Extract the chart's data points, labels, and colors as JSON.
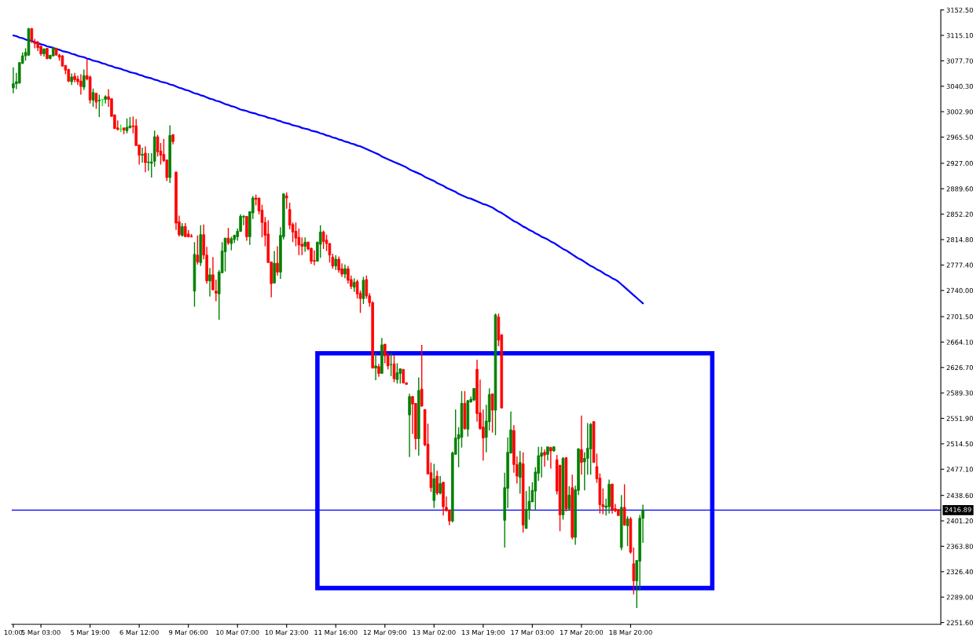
{
  "chart_data": {
    "type": "candlestick",
    "categories": [
      "10:00",
      null,
      null,
      null,
      null,
      null,
      null,
      null,
      null,
      "5 Mar 03:00",
      null,
      null,
      null,
      null,
      null,
      null,
      null,
      null,
      null,
      null,
      null,
      null,
      null,
      null,
      null,
      "5 Mar 19:00",
      null,
      null,
      null,
      null,
      null,
      null,
      null,
      null,
      null,
      null,
      null,
      null,
      null,
      null,
      null,
      "6 Mar 12:00",
      null,
      null,
      null,
      null,
      null,
      null,
      null,
      null,
      null,
      null,
      null,
      null,
      null,
      null,
      null,
      "9 Mar 06:00",
      null,
      null,
      null,
      null,
      null,
      null,
      null,
      null,
      null,
      null,
      null,
      null,
      null,
      null,
      null,
      "10 Mar 07:00",
      null,
      null,
      null,
      null,
      null,
      null,
      null,
      null,
      null,
      null,
      null,
      null,
      null,
      null,
      null,
      "10 Mar 23:00",
      null,
      null,
      null,
      null,
      null,
      null,
      null,
      null,
      null,
      null,
      null,
      null,
      null,
      null,
      null,
      "11 Mar 16:00",
      null,
      null,
      null,
      null,
      null,
      null,
      null,
      null,
      null,
      null,
      null,
      null,
      null,
      null,
      null,
      "12 Mar 09:00",
      null,
      null,
      null,
      null,
      null,
      null,
      null,
      null,
      null,
      null,
      null,
      null,
      null,
      null,
      null,
      "13 Mar 02:00",
      null,
      null,
      null,
      null,
      null,
      null,
      null,
      null,
      null,
      null,
      null,
      null,
      null,
      null,
      null,
      "13 Mar 19:00",
      null,
      null,
      null,
      null,
      null,
      null,
      null,
      null,
      null,
      null,
      null,
      null,
      null,
      null,
      null,
      "17 Mar 03:00",
      null,
      null,
      null,
      null,
      null,
      null,
      null,
      null,
      null,
      null,
      null,
      null,
      null,
      null,
      null,
      "17 Mar 20:00",
      null,
      null,
      null,
      null,
      null,
      null,
      null,
      null,
      null,
      null,
      null,
      null,
      null,
      null,
      null,
      "18 Mar 20:00",
      null,
      null,
      null,
      null
    ],
    "ohlc": [
      [
        3038,
        3068,
        3030,
        3044
      ],
      [
        3044,
        3060,
        3036,
        3047
      ],
      [
        3045,
        3076,
        3044,
        3075
      ],
      [
        3074,
        3090,
        3073,
        3085
      ],
      [
        3085,
        3096,
        3078,
        3090
      ],
      [
        3086,
        3126,
        3085,
        3125
      ],
      [
        3125,
        3126,
        3104,
        3108
      ],
      [
        3106,
        3110,
        3096,
        3103
      ],
      [
        3104,
        3107,
        3092,
        3097
      ],
      [
        3099,
        3100,
        3085,
        3088
      ],
      [
        3088,
        3096,
        3084,
        3095
      ],
      [
        3096,
        3096,
        3080,
        3081
      ],
      [
        3081,
        3086,
        3080,
        3086
      ],
      [
        3085,
        3098,
        3084,
        3097
      ],
      [
        3096,
        3097,
        3086,
        3086
      ],
      [
        3086,
        3088,
        3078,
        3083
      ],
      [
        3085,
        3086,
        3069,
        3070
      ],
      [
        3071,
        3071,
        3058,
        3064
      ],
      [
        3065,
        3066,
        3046,
        3048
      ],
      [
        3047,
        3059,
        3042,
        3054
      ],
      [
        3055,
        3060,
        3046,
        3050
      ],
      [
        3051,
        3056,
        3042,
        3047
      ],
      [
        3048,
        3058,
        3028,
        3040
      ],
      [
        3039,
        3065,
        3035,
        3056
      ],
      [
        3056,
        3080,
        3049,
        3051
      ],
      [
        3054,
        3056,
        3015,
        3020
      ],
      [
        3020,
        3037,
        3010,
        3031
      ],
      [
        3030,
        3030,
        3007,
        3017
      ],
      [
        3019,
        3028,
        2995,
        3020
      ],
      [
        3021,
        3022,
        3011,
        3021
      ],
      [
        3021,
        3027,
        3015,
        3025
      ],
      [
        3025,
        3036,
        3010,
        3021
      ],
      [
        3022,
        3022,
        2996,
        2996
      ],
      [
        2998,
        2999,
        2978,
        2978
      ],
      [
        2979,
        2990,
        2975,
        2977
      ],
      [
        2977,
        2984,
        2973,
        2977
      ],
      [
        2979,
        2979,
        2970,
        2976
      ],
      [
        2975,
        2993,
        2971,
        2980
      ],
      [
        2979,
        2995,
        2979,
        2982
      ],
      [
        2982,
        2996,
        2971,
        2981
      ],
      [
        2982,
        2992,
        2953,
        2953
      ],
      [
        2954,
        2954,
        2925,
        2939
      ],
      [
        2939,
        2950,
        2928,
        2940
      ],
      [
        2942,
        2952,
        2914,
        2928
      ],
      [
        2928,
        2942,
        2916,
        2929
      ],
      [
        2927,
        2942,
        2906,
        2929
      ],
      [
        2930,
        2975,
        2922,
        2966
      ],
      [
        2966,
        2969,
        2937,
        2944
      ],
      [
        2945,
        2957,
        2925,
        2939
      ],
      [
        2940,
        2963,
        2929,
        2931
      ],
      [
        2932,
        2932,
        2901,
        2906
      ],
      [
        2906,
        2983,
        2898,
        2968
      ],
      [
        2969,
        2970,
        2955,
        2959
      ],
      [
        2914,
        2915,
        2829,
        2839
      ],
      [
        2841,
        2850,
        2819,
        2822
      ],
      [
        2821,
        2839,
        2819,
        2834
      ],
      [
        2834,
        2839,
        2819,
        2819
      ],
      [
        2823,
        2829,
        2818,
        2819
      ],
      [
        2820,
        2823,
        2818,
        2819
      ],
      [
        2739,
        2811,
        2716,
        2793
      ],
      [
        2792,
        2821,
        2778,
        2782
      ],
      [
        2781,
        2836,
        2776,
        2822
      ],
      [
        2822,
        2837,
        2786,
        2792
      ],
      [
        2792,
        2804,
        2750,
        2754
      ],
      [
        2754,
        2773,
        2731,
        2763
      ],
      [
        2763,
        2789,
        2740,
        2741
      ],
      [
        2739,
        2756,
        2724,
        2736
      ],
      [
        2735,
        2770,
        2697,
        2767
      ],
      [
        2766,
        2811,
        2766,
        2798
      ],
      [
        2797,
        2817,
        2768,
        2817
      ],
      [
        2817,
        2832,
        2807,
        2810
      ],
      [
        2809,
        2819,
        2799,
        2816
      ],
      [
        2815,
        2822,
        2810,
        2821
      ],
      [
        2819,
        2831,
        2813,
        2827
      ],
      [
        2827,
        2852,
        2826,
        2849
      ],
      [
        2848,
        2851,
        2836,
        2849
      ],
      [
        2849,
        2849,
        2813,
        2819
      ],
      [
        2819,
        2856,
        2807,
        2856
      ],
      [
        2854,
        2879,
        2845,
        2876
      ],
      [
        2876,
        2881,
        2865,
        2874
      ],
      [
        2876,
        2876,
        2852,
        2857
      ],
      [
        2858,
        2866,
        2818,
        2840
      ],
      [
        2840,
        2848,
        2805,
        2821
      ],
      [
        2823,
        2843,
        2781,
        2781
      ],
      [
        2782,
        2782,
        2730,
        2750
      ],
      [
        2751,
        2798,
        2750,
        2780
      ],
      [
        2780,
        2805,
        2762,
        2767
      ],
      [
        2767,
        2833,
        2757,
        2821
      ],
      [
        2819,
        2882,
        2815,
        2882
      ],
      [
        2879,
        2884,
        2860,
        2876
      ],
      [
        2859,
        2869,
        2830,
        2836
      ],
      [
        2837,
        2840,
        2811,
        2826
      ],
      [
        2827,
        2840,
        2805,
        2817
      ],
      [
        2818,
        2831,
        2792,
        2807
      ],
      [
        2808,
        2818,
        2792,
        2805
      ],
      [
        2805,
        2818,
        2797,
        2811
      ],
      [
        2811,
        2812,
        2799,
        2801
      ],
      [
        2802,
        2803,
        2779,
        2783
      ],
      [
        2784,
        2799,
        2777,
        2783
      ],
      [
        2783,
        2812,
        2783,
        2811
      ],
      [
        2808,
        2836,
        2788,
        2826
      ],
      [
        2826,
        2828,
        2801,
        2812
      ],
      [
        2814,
        2822,
        2798,
        2809
      ],
      [
        2809,
        2810,
        2781,
        2792
      ],
      [
        2789,
        2794,
        2772,
        2776
      ],
      [
        2776,
        2792,
        2770,
        2786
      ],
      [
        2786,
        2790,
        2766,
        2770
      ],
      [
        2772,
        2780,
        2760,
        2764
      ],
      [
        2764,
        2778,
        2758,
        2772
      ],
      [
        2772,
        2776,
        2750,
        2755
      ],
      [
        2756,
        2762,
        2742,
        2746
      ],
      [
        2745,
        2758,
        2738,
        2752
      ],
      [
        2753,
        2756,
        2728,
        2735
      ],
      [
        2736,
        2740,
        2707,
        2728
      ],
      [
        2728,
        2760,
        2720,
        2755
      ],
      [
        2756,
        2762,
        2728,
        2732
      ],
      [
        2732,
        2736,
        2716,
        2722
      ],
      [
        2722,
        2724,
        2625,
        2626
      ],
      [
        2626,
        2648,
        2608,
        2629
      ],
      [
        2628,
        2632,
        2613,
        2618
      ],
      [
        2618,
        2670,
        2618,
        2660
      ],
      [
        2661,
        2661,
        2633,
        2644
      ],
      [
        2645,
        2648,
        2624,
        2629
      ],
      [
        2631,
        2648,
        2614,
        2631
      ],
      [
        2632,
        2645,
        2605,
        2610
      ],
      [
        2609,
        2633,
        2603,
        2619
      ],
      [
        2618,
        2625,
        2603,
        2625
      ],
      [
        2624,
        2624,
        2603,
        2604
      ],
      [
        2604,
        2605,
        2601,
        2602
      ],
      [
        2557,
        2588,
        2495,
        2584
      ],
      [
        2584,
        2585,
        2529,
        2573
      ],
      [
        2574,
        2574,
        2506,
        2522
      ],
      [
        2522,
        2612,
        2497,
        2593
      ],
      [
        2595,
        2660,
        2569,
        2570
      ],
      [
        2565,
        2565,
        2511,
        2513
      ],
      [
        2514,
        2544,
        2470,
        2470
      ],
      [
        2472,
        2487,
        2444,
        2450
      ],
      [
        2431,
        2485,
        2420,
        2463
      ],
      [
        2467,
        2475,
        2439,
        2442
      ],
      [
        2442,
        2467,
        2440,
        2456
      ],
      [
        2458,
        2458,
        2409,
        2422
      ],
      [
        2421,
        2437,
        2415,
        2416
      ],
      [
        2417,
        2417,
        2395,
        2401
      ],
      [
        2401,
        2503,
        2399,
        2501
      ],
      [
        2499,
        2565,
        2499,
        2523
      ],
      [
        2522,
        2539,
        2480,
        2528
      ],
      [
        2524,
        2592,
        2509,
        2574
      ],
      [
        2574,
        2592,
        2535,
        2537
      ],
      [
        2536,
        2579,
        2525,
        2578
      ],
      [
        2576,
        2584,
        2575,
        2580
      ],
      [
        2579,
        2596,
        2577,
        2596
      ],
      [
        2624,
        2638,
        2547,
        2559
      ],
      [
        2560,
        2609,
        2535,
        2537
      ],
      [
        2539,
        2565,
        2490,
        2523
      ],
      [
        2524,
        2572,
        2502,
        2548
      ],
      [
        2547,
        2596,
        2534,
        2587
      ],
      [
        2588,
        2588,
        2531,
        2564
      ],
      [
        2564,
        2706,
        2527,
        2704
      ],
      [
        2701,
        2706,
        2658,
        2667
      ],
      [
        2675,
        2675,
        2567,
        2567
      ],
      [
        2402,
        2472,
        2362,
        2450
      ],
      [
        2449,
        2524,
        2420,
        2502
      ],
      [
        2501,
        2562,
        2500,
        2535
      ],
      [
        2534,
        2542,
        2472,
        2484
      ],
      [
        2484,
        2496,
        2456,
        2467
      ],
      [
        2465,
        2504,
        2441,
        2487
      ],
      [
        2485,
        2502,
        2384,
        2395
      ],
      [
        2390,
        2445,
        2390,
        2418
      ],
      [
        2417,
        2452,
        2403,
        2430
      ],
      [
        2429,
        2458,
        2429,
        2446
      ],
      [
        2445,
        2480,
        2416,
        2473
      ],
      [
        2471,
        2510,
        2460,
        2497
      ],
      [
        2496,
        2510,
        2465,
        2501
      ],
      [
        2502,
        2506,
        2481,
        2498
      ],
      [
        2499,
        2510,
        2490,
        2510
      ],
      [
        2509,
        2510,
        2478,
        2504
      ],
      [
        2504,
        2511,
        2503,
        2510
      ],
      [
        2491,
        2498,
        2440,
        2445
      ],
      [
        2483,
        2483,
        2386,
        2410
      ],
      [
        2410,
        2495,
        2403,
        2493
      ],
      [
        2494,
        2495,
        2415,
        2419
      ],
      [
        2419,
        2452,
        2416,
        2439
      ],
      [
        2450,
        2469,
        2374,
        2377
      ],
      [
        2377,
        2453,
        2366,
        2447
      ],
      [
        2446,
        2508,
        2439,
        2507
      ],
      [
        2506,
        2556,
        2469,
        2487
      ],
      [
        2488,
        2502,
        2446,
        2493
      ],
      [
        2493,
        2545,
        2469,
        2508
      ],
      [
        2507,
        2545,
        2469,
        2543
      ],
      [
        2547,
        2548,
        2487,
        2487
      ],
      [
        2481,
        2500,
        2457,
        2463
      ],
      [
        2464,
        2471,
        2412,
        2425
      ],
      [
        2425,
        2449,
        2411,
        2422
      ],
      [
        2421,
        2434,
        2409,
        2423
      ],
      [
        2422,
        2462,
        2412,
        2455
      ],
      [
        2455,
        2456,
        2412,
        2418
      ],
      [
        2419,
        2426,
        2414,
        2416
      ],
      [
        2418,
        2418,
        2409,
        2409
      ],
      [
        2362,
        2439,
        2358,
        2421
      ],
      [
        2421,
        2455,
        2394,
        2395
      ],
      [
        2394,
        2408,
        2364,
        2404
      ],
      [
        2404,
        2407,
        2353,
        2355
      ],
      [
        2338,
        2362,
        2293,
        2313
      ],
      [
        2313,
        2343,
        2273,
        2343
      ],
      [
        2342,
        2410,
        2299,
        2405
      ],
      [
        2405,
        2425,
        2369,
        2417
      ]
    ],
    "colors": [
      "#008000",
      "#008000",
      "#008000",
      "#008000",
      "#008000",
      "#008000",
      "#ff0000",
      "#ff0000",
      "#ff0000",
      "#ff0000",
      "#008000",
      "#ff0000",
      "#008000",
      "#008000",
      "#ff0000",
      "#ff0000",
      "#ff0000",
      "#ff0000",
      "#ff0000",
      "#008000",
      "#ff0000",
      "#ff0000",
      "#ff0000",
      "#008000",
      "#ff0000",
      "#ff0000",
      "#008000",
      "#ff0000",
      "#008000",
      "#00ff00",
      "#008000",
      "#ff0000",
      "#ff0000",
      "#ff0000",
      "#ff0000",
      "#00ff00",
      "#ff0000",
      "#008000",
      "#008000",
      "#ff0000",
      "#ff0000",
      "#ff0000",
      "#008000",
      "#ff0000",
      "#008000",
      "#008000",
      "#008000",
      "#ff0000",
      "#ff0000",
      "#ff0000",
      "#ff0000",
      "#008000",
      "#ff0000",
      "#ff0000",
      "#ff0000",
      "#008000",
      "#ff0000",
      "#ff0000",
      "#ff0000",
      "#008000",
      "#ff0000",
      "#008000",
      "#ff0000",
      "#ff0000",
      "#008000",
      "#ff0000",
      "#ff0000",
      "#008000",
      "#008000",
      "#008000",
      "#ff0000",
      "#008000",
      "#008000",
      "#008000",
      "#008000",
      "#008000",
      "#ff0000",
      "#008000",
      "#008000",
      "#ff0000",
      "#ff0000",
      "#ff0000",
      "#ff0000",
      "#ff0000",
      "#ff0000",
      "#008000",
      "#ff0000",
      "#008000",
      "#008000",
      "#ff0000",
      "#ff0000",
      "#ff0000",
      "#ff0000",
      "#ff0000",
      "#ff0000",
      "#008000",
      "#ff0000",
      "#ff0000",
      "#ff0000",
      "#008000",
      "#008000",
      "#ff0000",
      "#ff0000",
      "#ff0000",
      "#ff0000",
      "#008000",
      "#ff0000",
      "#ff0000",
      "#008000",
      "#ff0000",
      "#ff0000",
      "#008000",
      "#ff0000",
      "#ff0000",
      "#008000",
      "#ff0000",
      "#ff0000",
      "#ff0000",
      "#008000",
      "#ff0000",
      "#008000",
      "#ff0000",
      "#ff0000",
      "#008000",
      "#ff0000",
      "#008000",
      "#008000",
      "#ff0000",
      "#ff0000",
      "#008000",
      "#ff0000",
      "#ff0000",
      "#008000",
      "#ff0000",
      "#ff0000",
      "#ff0000",
      "#ff0000",
      "#008000",
      "#ff0000",
      "#008000",
      "#ff0000",
      "#ff0000",
      "#ff0000",
      "#008000",
      "#008000",
      "#008000",
      "#008000",
      "#ff0000",
      "#008000",
      "#008000",
      "#008000",
      "#ff0000",
      "#ff0000",
      "#ff0000",
      "#008000",
      "#008000",
      "#ff0000",
      "#008000",
      "#ff0000",
      "#ff0000",
      "#008000",
      "#008000",
      "#008000",
      "#ff0000",
      "#ff0000",
      "#008000",
      "#ff0000",
      "#008000",
      "#008000",
      "#008000",
      "#008000",
      "#008000",
      "#008000",
      "#ff0000",
      "#008000",
      "#ff0000",
      "#008000",
      "#ff0000",
      "#ff0000",
      "#008000",
      "#ff0000",
      "#008000",
      "#ff0000",
      "#008000",
      "#008000",
      "#ff0000",
      "#008000",
      "#008000",
      "#008000",
      "#ff0000",
      "#ff0000",
      "#ff0000",
      "#ff0000",
      "#008000",
      "#008000",
      "#ff0000",
      "#ff0000",
      "#ff0000",
      "#008000",
      "#ff0000",
      "#008000",
      "#ff0000",
      "#ff0000",
      "#008000",
      "#008000",
      "#008000"
    ],
    "series": [
      {
        "type": "line",
        "color": "#0000ff",
        "values": [
          3115,
          3114,
          3112,
          3111,
          3109,
          3108,
          3107,
          3105,
          3104,
          3102,
          3101,
          3099,
          3098,
          3097,
          3095,
          3094,
          3092,
          3091,
          3090,
          3088,
          3087,
          3085,
          3084,
          3083,
          3081,
          3080,
          3078,
          3077,
          3076,
          3074,
          3073,
          3071,
          3070,
          3068,
          3067,
          3066,
          3064,
          3063,
          3061,
          3060,
          3059,
          3057,
          3056,
          3054,
          3053,
          3052,
          3050,
          3049,
          3047,
          3046,
          3045,
          3043,
          3042,
          3040,
          3038,
          3037,
          3035,
          3034,
          3032,
          3030,
          3029,
          3027,
          3026,
          3024,
          3022,
          3021,
          3019,
          3018,
          3016,
          3014,
          3013,
          3011,
          3010,
          3008,
          3006,
          3005,
          3004,
          3002,
          3001,
          3000,
          2998,
          2997,
          2996,
          2994,
          2993,
          2992,
          2990,
          2989,
          2987,
          2986,
          2985,
          2983,
          2982,
          2981,
          2979,
          2978,
          2977,
          2975,
          2974,
          2973,
          2971,
          2970,
          2968,
          2967,
          2965,
          2964,
          2962,
          2961,
          2959,
          2958,
          2956,
          2955,
          2953,
          2952,
          2950,
          2948,
          2946,
          2944,
          2942,
          2940,
          2937,
          2935,
          2933,
          2931,
          2929,
          2927,
          2925,
          2923,
          2921,
          2918,
          2916,
          2914,
          2912,
          2910,
          2907,
          2905,
          2903,
          2901,
          2898,
          2896,
          2894,
          2891,
          2889,
          2887,
          2885,
          2882,
          2880,
          2878,
          2876,
          2875,
          2873,
          2871,
          2869,
          2867,
          2866,
          2864,
          2862,
          2859,
          2856,
          2854,
          2851,
          2848,
          2845,
          2842,
          2840,
          2837,
          2834,
          2832,
          2829,
          2827,
          2824,
          2822,
          2819,
          2817,
          2815,
          2812,
          2810,
          2807,
          2804,
          2801,
          2799,
          2796,
          2793,
          2790,
          2787,
          2785,
          2782,
          2779,
          2776,
          2774,
          2771,
          2769,
          2766,
          2763,
          2761,
          2758,
          2756,
          2753,
          2749,
          2745,
          2741,
          2737,
          2733,
          2729,
          2725,
          2721
        ]
      }
    ],
    "ref_lines": [
      {
        "axis": "y",
        "value": 2416.89,
        "label": "2416.89",
        "color": "#0000ff"
      }
    ],
    "ylim": [
      2249,
      3153
    ],
    "yticks": [
      {
        "value": 3152.5,
        "label": "3152.50"
      },
      {
        "value": 3115.1,
        "label": "3115.10"
      },
      {
        "value": 3077.7,
        "label": "3077.70"
      },
      {
        "value": 3040.3,
        "label": "3040.30"
      },
      {
        "value": 3002.9,
        "label": "3002.90"
      },
      {
        "value": 2965.5,
        "label": "2965.50"
      },
      {
        "value": 2927,
        "label": "2927.00"
      },
      {
        "value": 2889.6,
        "label": "2889.60"
      },
      {
        "value": 2852.2,
        "label": "2852.20"
      },
      {
        "value": 2814.8,
        "label": "2814.80"
      },
      {
        "value": 2777.4,
        "label": "2777.40"
      },
      {
        "value": 2740,
        "label": "2740.00"
      },
      {
        "value": 2701.5,
        "label": "2701.50"
      },
      {
        "value": 2664.1,
        "label": "2664.10"
      },
      {
        "value": 2626.7,
        "label": "2626.70"
      },
      {
        "value": 2589.3,
        "label": "2589.30"
      },
      {
        "value": 2551.9,
        "label": "2551.90"
      },
      {
        "value": 2514.5,
        "label": "2514.50"
      },
      {
        "value": 2477.1,
        "label": "2477.10"
      },
      {
        "value": 2438.6,
        "label": "2438.60"
      },
      {
        "value": 2401.2,
        "label": "2401.20"
      },
      {
        "value": 2363.8,
        "label": "2363.80"
      },
      {
        "value": 2326.4,
        "label": "2326.40"
      },
      {
        "value": 2289,
        "label": "2289.00"
      },
      {
        "value": 2251.6,
        "label": "2251.60"
      }
    ]
  }
}
